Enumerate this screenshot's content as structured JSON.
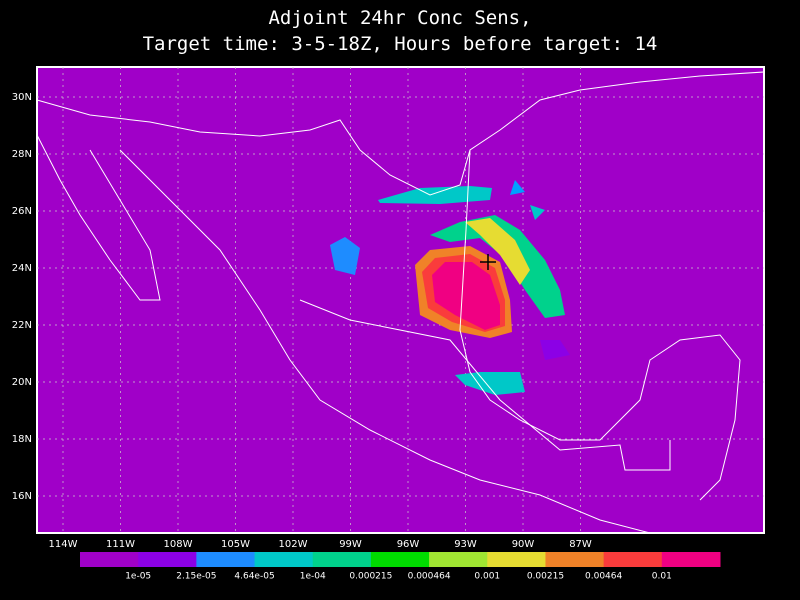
{
  "header": {
    "title_lines": [
      "Adjoint 24hr Conc Sens,",
      "Target time: 3-5-18Z, Hours before target: 14"
    ]
  },
  "map": {
    "lat_labels": [
      "30N",
      "28N",
      "26N",
      "24N",
      "22N",
      "20N",
      "18N",
      "16N"
    ],
    "lon_labels": [
      "114W",
      "111W",
      "108W",
      "105W",
      "102W",
      "99W",
      "96W",
      "93W",
      "90W",
      "87W"
    ]
  },
  "colorbar": {
    "colors": [
      "#a000c8",
      "#8c00e6",
      "#1e8cff",
      "#00c8c8",
      "#00d28c",
      "#00dc00",
      "#a0e632",
      "#e6dc32",
      "#f08228",
      "#fa3c3c",
      "#f00082"
    ],
    "labels": [
      "1e-05",
      "2.15e-05",
      "4.64e-05",
      "1e-04",
      "0.000215",
      "0.000464",
      "0.001",
      "0.00215",
      "0.00464",
      "0.01"
    ]
  }
}
